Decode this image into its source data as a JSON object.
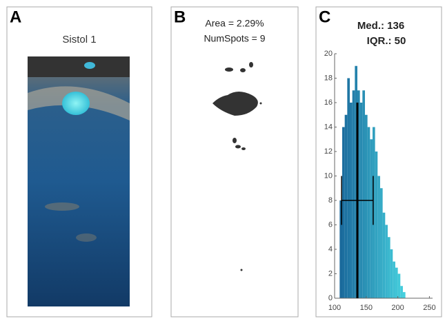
{
  "panels": [
    {
      "label": "A",
      "title": "Sistol 1"
    },
    {
      "label": "B",
      "lines": [
        "Area = 2.29%",
        "NumSpots = 9"
      ]
    }
  ],
  "chart_data": {
    "type": "histogram",
    "label": "C",
    "title": [
      "Med.: 136",
      "IQR.: 50"
    ],
    "bins": [
      108,
      112,
      116,
      120,
      124,
      128,
      132,
      136,
      140,
      144,
      148,
      152,
      156,
      160,
      164,
      168,
      172,
      176,
      180,
      184,
      188,
      192,
      196,
      200,
      204,
      208,
      212
    ],
    "values": [
      8,
      14,
      15,
      18,
      16,
      17,
      19,
      17,
      16,
      17,
      15,
      14,
      13,
      14,
      12,
      10,
      9,
      7,
      6,
      5,
      4,
      3,
      2.5,
      2,
      1,
      0.5
    ],
    "colors": [
      "#1a6a9c",
      "#45d0de"
    ],
    "median_line": {
      "x": 136,
      "height": 16
    },
    "iqr_bar": {
      "from": 111,
      "to": 161,
      "y": 8,
      "cap": 2
    },
    "xlim": [
      100,
      255
    ],
    "xticks": [
      100,
      150,
      200,
      250
    ],
    "ylim": [
      0,
      20
    ],
    "yticks": [
      0,
      2,
      4,
      6,
      8,
      10,
      12,
      14,
      16,
      18,
      20
    ]
  }
}
